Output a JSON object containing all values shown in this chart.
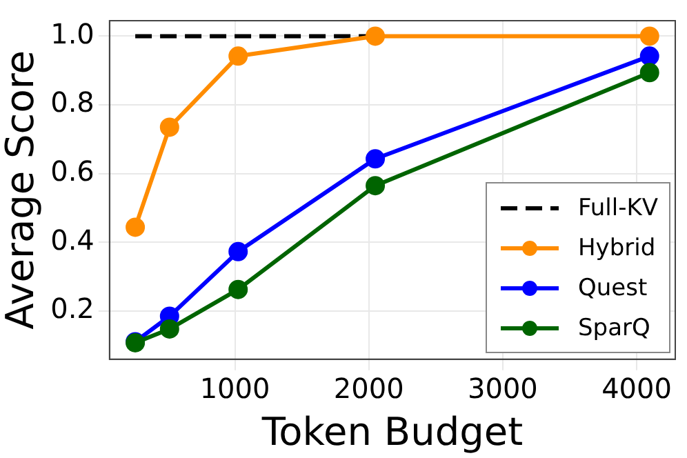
{
  "chart_data": {
    "type": "line",
    "xlabel": "Token Budget",
    "ylabel": "Average Score",
    "x": [
      256,
      512,
      1024,
      2048,
      4096
    ],
    "series": [
      {
        "name": "Full-KV",
        "color": "#000000",
        "x": [
          256,
          2048
        ],
        "values": [
          1.0,
          1.0
        ],
        "line_style": "dashed",
        "marker": "none"
      },
      {
        "name": "Hybrid",
        "color": "#ff8c00",
        "values": [
          0.444,
          0.735,
          0.942,
          1.0,
          1.0
        ]
      },
      {
        "name": "Quest",
        "color": "#0000ff",
        "values": [
          0.111,
          0.185,
          0.373,
          0.643,
          0.942
        ]
      },
      {
        "name": "SparQ",
        "color": "#006400",
        "values": [
          0.108,
          0.148,
          0.263,
          0.565,
          0.894
        ]
      }
    ],
    "xlim": [
      64,
      4288
    ],
    "xticks": [
      1000,
      2000,
      3000,
      4000
    ],
    "ylim": [
      0.06,
      1.045
    ],
    "yticks": [
      {
        "value": 0.2,
        "label": "0.2"
      },
      {
        "value": 0.4,
        "label": "0.4"
      },
      {
        "value": 0.6,
        "label": "0.6"
      },
      {
        "value": 0.8,
        "label": "0.8"
      },
      {
        "value": 1.0,
        "label": "1.0"
      }
    ],
    "grid": true,
    "legend": "bottom right",
    "marker": "circle",
    "line_style": "solid"
  }
}
